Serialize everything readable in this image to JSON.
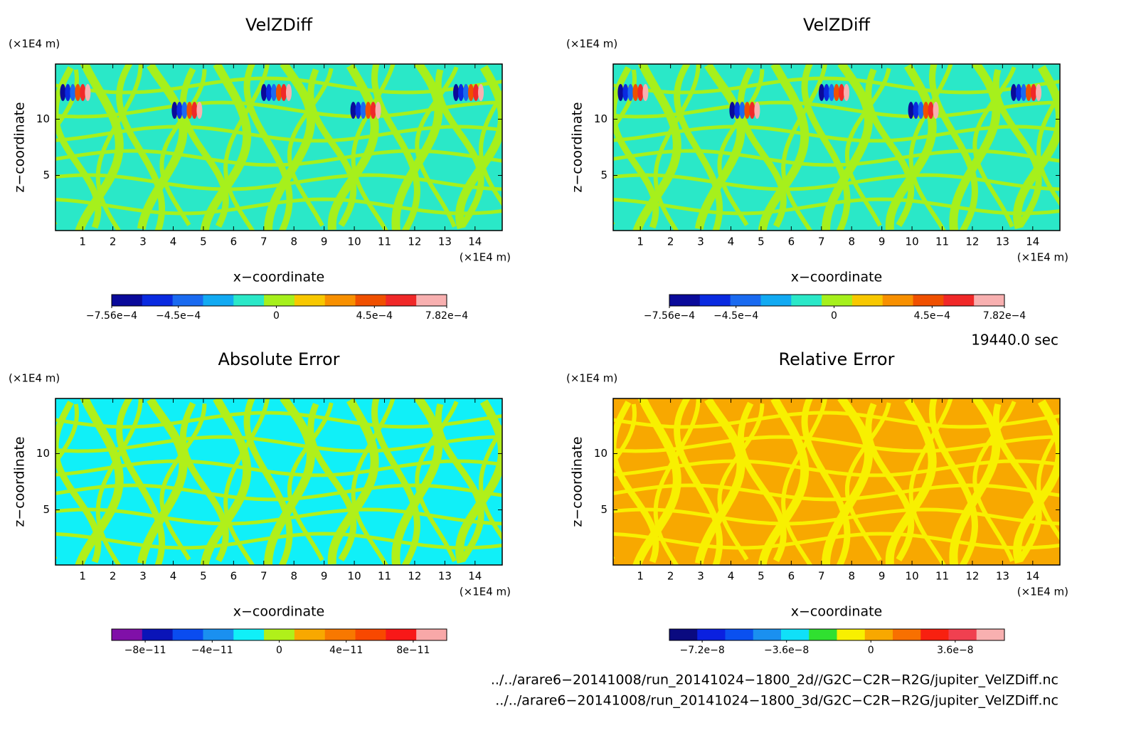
{
  "chart_data": [
    {
      "type": "contour",
      "title": "VelZDiff",
      "xlabel": "x−coordinate",
      "ylabel": "z−coordinate",
      "x_unit": "(×1E4 m)",
      "y_unit": "(×1E4 m)",
      "xlim": [
        0.1,
        14.9
      ],
      "xticks": [
        1,
        2,
        3,
        4,
        5,
        6,
        7,
        8,
        9,
        10,
        11,
        12,
        13,
        14
      ],
      "ylim": [
        0.1,
        14.9
      ],
      "yticks": [
        5,
        10
      ],
      "colorbar": {
        "colors": [
          "#0a0a9a",
          "#0a2ae0",
          "#1a6af0",
          "#12aaf2",
          "#2ae8c8",
          "#a6f01c",
          "#f8c800",
          "#f89000",
          "#f05000",
          "#f02828",
          "#f8b0b0"
        ],
        "lim": [
          -0.000756,
          0.000782
        ],
        "ticks": [
          {
            "value": -0.000756,
            "label": "−7.56e−4"
          },
          {
            "value": -0.00045,
            "label": "−4.5e−4"
          },
          0,
          {
            "value": 0.00045,
            "label": "4.5e−4"
          },
          {
            "value": 0.000782,
            "label": "7.82e−4"
          }
        ]
      }
    },
    {
      "type": "contour",
      "title": "VelZDiff",
      "xlabel": "x−coordinate",
      "ylabel": "z−coordinate",
      "x_unit": "(×1E4 m)",
      "y_unit": "(×1E4 m)",
      "xlim": [
        0.1,
        14.9
      ],
      "xticks": [
        1,
        2,
        3,
        4,
        5,
        6,
        7,
        8,
        9,
        10,
        11,
        12,
        13,
        14
      ],
      "ylim": [
        0.1,
        14.9
      ],
      "yticks": [
        5,
        10
      ],
      "colorbar": {
        "colors": [
          "#0a0a9a",
          "#0a2ae0",
          "#1a6af0",
          "#12aaf2",
          "#2ae8c8",
          "#a6f01c",
          "#f8c800",
          "#f89000",
          "#f05000",
          "#f02828",
          "#f8b0b0"
        ],
        "lim": [
          -0.000756,
          0.000782
        ],
        "ticks": [
          {
            "value": -0.000756,
            "label": "−7.56e−4"
          },
          {
            "value": -0.00045,
            "label": "−4.5e−4"
          },
          0,
          {
            "value": 0.00045,
            "label": "4.5e−4"
          },
          {
            "value": 0.000782,
            "label": "7.82e−4"
          }
        ]
      }
    },
    {
      "type": "contour",
      "title": "Absolute Error",
      "xlabel": "x−coordinate",
      "ylabel": "z−coordinate",
      "x_unit": "(×1E4 m)",
      "y_unit": "(×1E4 m)",
      "xlim": [
        0.1,
        14.9
      ],
      "xticks": [
        1,
        2,
        3,
        4,
        5,
        6,
        7,
        8,
        9,
        10,
        11,
        12,
        13,
        14
      ],
      "ylim": [
        0.1,
        14.9
      ],
      "yticks": [
        5,
        10
      ],
      "colorbar": {
        "colors": [
          "#8010a8",
          "#0a14b8",
          "#0a4cf0",
          "#1a90f0",
          "#10f0f8",
          "#b0f01a",
          "#f8a800",
          "#f87800",
          "#f84800",
          "#f81818",
          "#f8a8a8"
        ],
        "lim": [
          -1e-10,
          1e-10
        ],
        "ticks": [
          {
            "value": -8e-11,
            "label": "−8e−11"
          },
          {
            "value": -4e-11,
            "label": "−4e−11"
          },
          0,
          {
            "value": 4e-11,
            "label": "4e−11"
          },
          {
            "value": 8e-11,
            "label": "8e−11"
          }
        ]
      }
    },
    {
      "type": "contour",
      "title": "Relative Error",
      "xlabel": "x−coordinate",
      "ylabel": "z−coordinate",
      "x_unit": "(×1E4 m)",
      "y_unit": "(×1E4 m)",
      "xlim": [
        0.1,
        14.9
      ],
      "xticks": [
        1,
        2,
        3,
        4,
        5,
        6,
        7,
        8,
        9,
        10,
        11,
        12,
        13,
        14
      ],
      "ylim": [
        0.1,
        14.9
      ],
      "yticks": [
        5,
        10
      ],
      "colorbar": {
        "colors": [
          "#0a0a80",
          "#0a20e0",
          "#0a50f0",
          "#1a90f0",
          "#10e0f8",
          "#30e030",
          "#f8f000",
          "#f8a800",
          "#f87000",
          "#f82010",
          "#f04050",
          "#f8b0b0"
        ],
        "lim": [
          -8.6e-08,
          5.7e-08
        ],
        "ticks": [
          {
            "value": -7.2e-08,
            "label": "−7.2e−8"
          },
          {
            "value": -3.6e-08,
            "label": "−3.6e−8"
          },
          0,
          {
            "value": 3.6e-08,
            "label": "3.6e−8"
          }
        ]
      }
    }
  ],
  "time": "19440.0 sec",
  "files": [
    "../../arare6−20141008/run_20141024−1800_2d//G2C−C2R−R2G/jupiter_VelZDiff.nc",
    "../../arare6−20141008/run_20141024−1800_3d/G2C−C2R−R2G/jupiter_VelZDiff.nc"
  ]
}
